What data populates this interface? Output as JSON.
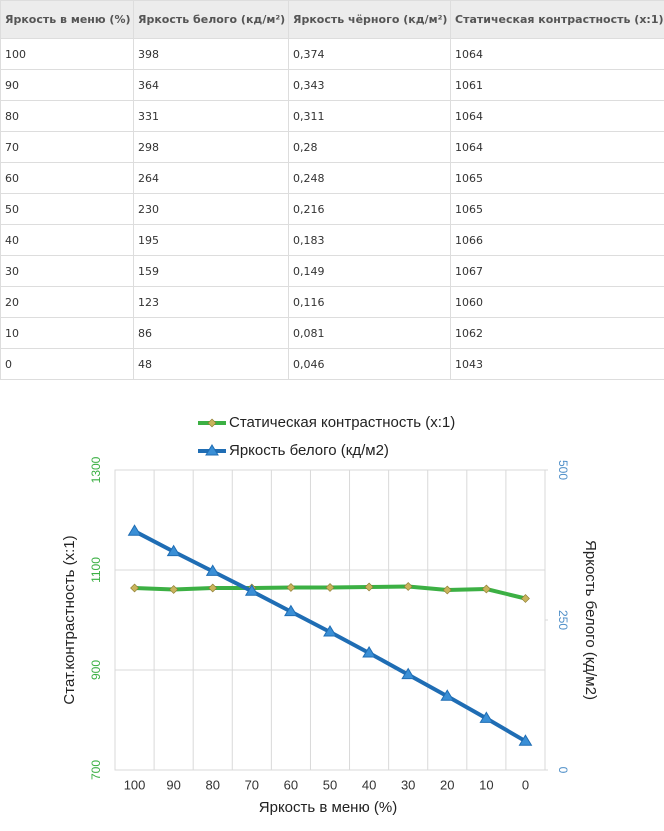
{
  "table": {
    "header": [
      "Яркость в меню (%)",
      "Яркость белого (кд/м²)",
      "Яркость чёрного (кд/м²)",
      "Статическая контрастность (x:1)"
    ],
    "rows": [
      [
        "100",
        "398",
        "0,374",
        "1064"
      ],
      [
        "90",
        "364",
        "0,343",
        "1061"
      ],
      [
        "80",
        "331",
        "0,311",
        "1064"
      ],
      [
        "70",
        "298",
        "0,28",
        "1064"
      ],
      [
        "60",
        "264",
        "0,248",
        "1065"
      ],
      [
        "50",
        "230",
        "0,216",
        "1065"
      ],
      [
        "40",
        "195",
        "0,183",
        "1066"
      ],
      [
        "30",
        "159",
        "0,149",
        "1067"
      ],
      [
        "20",
        "123",
        "0,116",
        "1060"
      ],
      [
        "10",
        "86",
        "0,081",
        "1062"
      ],
      [
        "0",
        "48",
        "0,046",
        "1043"
      ]
    ]
  },
  "chart_data": {
    "type": "line",
    "x_label": "Яркость в меню (%)",
    "y_label": "Стат.контрастность  (x:1)",
    "y2_label": "Яркость белого (кд/м2)",
    "categories": [
      "100",
      "90",
      "80",
      "70",
      "60",
      "50",
      "40",
      "30",
      "20",
      "10",
      "0"
    ],
    "series": [
      {
        "name": "Статическая контрастность  (x:1)",
        "color": "#3cb044",
        "marker_color": "#c9b45c",
        "marker": "diamond",
        "values": [
          1064,
          1061,
          1064,
          1064,
          1065,
          1065,
          1066,
          1067,
          1060,
          1062,
          1043
        ]
      },
      {
        "name": "Яркость белого (кд/м2)",
        "color": "#1f6db4",
        "marker_color": "#3a8fd6",
        "marker": "triangle",
        "axis": "y2",
        "values": [
          398,
          364,
          331,
          298,
          264,
          230,
          195,
          159,
          123,
          86,
          48
        ]
      }
    ],
    "ylim": [
      700,
      1300
    ],
    "yticks": [
      700,
      900,
      1100,
      1300
    ],
    "y2lim": [
      0,
      500
    ],
    "y2ticks": [
      0,
      250,
      500
    ],
    "grid": true,
    "ytick_color": "#3cb044",
    "y2tick_color": "#4f8fc8"
  }
}
